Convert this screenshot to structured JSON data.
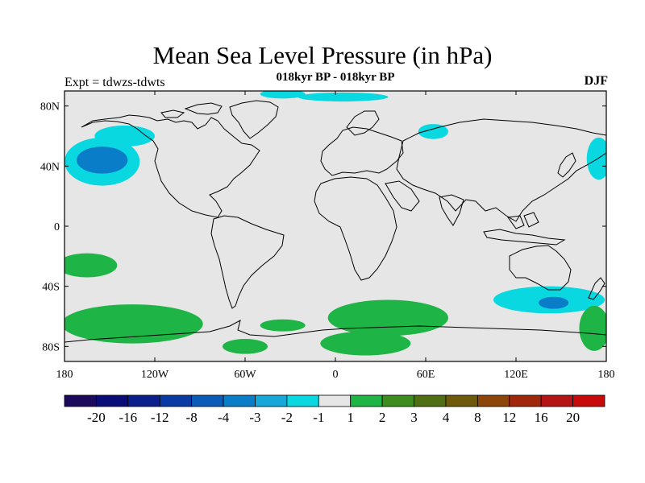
{
  "title": "Mean Sea Level Pressure (in hPa)",
  "subtitle": "018kyr BP - 018kyr BP",
  "expt": "Expt = tdwzs-tdwts",
  "season": "DJF",
  "map": {
    "lon_range": [
      -180,
      180
    ],
    "lat_range": [
      -90,
      90
    ],
    "background_color": "#e6e6e6",
    "x_ticks": [
      {
        "lon": -180,
        "label": "180"
      },
      {
        "lon": -120,
        "label": "120W"
      },
      {
        "lon": -60,
        "label": "60W"
      },
      {
        "lon": 0,
        "label": "0"
      },
      {
        "lon": 60,
        "label": "60E"
      },
      {
        "lon": 120,
        "label": "120E"
      },
      {
        "lon": 180,
        "label": "180"
      }
    ],
    "y_ticks": [
      {
        "lat": 80,
        "label": "80N"
      },
      {
        "lat": 40,
        "label": "40N"
      },
      {
        "lat": 0,
        "label": "0"
      },
      {
        "lat": -40,
        "label": "40S"
      },
      {
        "lat": -80,
        "label": "80S"
      }
    ]
  },
  "colorbar": {
    "colors": [
      "#1c0a5c",
      "#0a0d78",
      "#0a1f8c",
      "#0a3aa3",
      "#0a5cb8",
      "#0a7dc8",
      "#15a8d8",
      "#0ad8e0",
      "#e6e6e6",
      "#1eb446",
      "#3c8c1e",
      "#506e14",
      "#6e5a0a",
      "#8c460a",
      "#a0280a",
      "#b41414",
      "#c80a0a"
    ],
    "labels": [
      "-20",
      "-16",
      "-12",
      "-8",
      "-4",
      "-3",
      "-2",
      "-1",
      "1",
      "2",
      "3",
      "4",
      "8",
      "12",
      "16",
      "20"
    ]
  },
  "anomaly_regions": [
    {
      "name": "north-pacific-low-outer",
      "color": "#0ad8e0",
      "lon": -155,
      "lat": 43,
      "rlon": 25,
      "rlat": 16
    },
    {
      "name": "north-pacific-low-inner",
      "color": "#0a7dc8",
      "lon": -155,
      "lat": 44,
      "rlon": 17,
      "rlat": 9
    },
    {
      "name": "alaska-negative",
      "color": "#0ad8e0",
      "lon": -140,
      "lat": 60,
      "rlon": 20,
      "rlat": 7
    },
    {
      "name": "north-atlantic-negative",
      "color": "#0ad8e0",
      "lon": -35,
      "lat": 88,
      "rlon": 15,
      "rlat": 3
    },
    {
      "name": "arctic-atlantic-negative",
      "color": "#0ad8e0",
      "lon": 5,
      "lat": 86,
      "rlon": 30,
      "rlat": 3
    },
    {
      "name": "siberia-negative",
      "color": "#0ad8e0",
      "lon": 65,
      "lat": 63,
      "rlon": 10,
      "rlat": 5
    },
    {
      "name": "northwest-pacific-negative",
      "color": "#0ad8e0",
      "lon": 175,
      "lat": 45,
      "rlon": 8,
      "rlat": 14
    },
    {
      "name": "south-indian-negative-outer",
      "color": "#0ad8e0",
      "lon": 142,
      "lat": -49,
      "rlon": 37,
      "rlat": 9
    },
    {
      "name": "south-indian-negative-inner",
      "color": "#0a7dc8",
      "lon": 145,
      "lat": -51,
      "rlon": 10,
      "rlat": 4
    },
    {
      "name": "south-pacific-positive",
      "color": "#1eb446",
      "lon": -165,
      "lat": -26,
      "rlon": 20,
      "rlat": 8
    },
    {
      "name": "southern-ocean-positive-west",
      "color": "#1eb446",
      "lon": -135,
      "lat": -65,
      "rlon": 47,
      "rlat": 13
    },
    {
      "name": "southern-ocean-positive-south-atlantic",
      "color": "#1eb446",
      "lon": -35,
      "lat": -66,
      "rlon": 15,
      "rlat": 4
    },
    {
      "name": "southern-ocean-positive-africa",
      "color": "#1eb446",
      "lon": 35,
      "lat": -61,
      "rlon": 40,
      "rlat": 12
    },
    {
      "name": "antarctic-positive",
      "color": "#1eb446",
      "lon": 20,
      "lat": -78,
      "rlon": 30,
      "rlat": 8
    },
    {
      "name": "antarctic-positive-east",
      "color": "#1eb446",
      "lon": -60,
      "lat": -80,
      "rlon": 15,
      "rlat": 5
    },
    {
      "name": "southern-ocean-positive-east",
      "color": "#1eb446",
      "lon": 172,
      "lat": -68,
      "rlon": 10,
      "rlat": 15
    }
  ]
}
